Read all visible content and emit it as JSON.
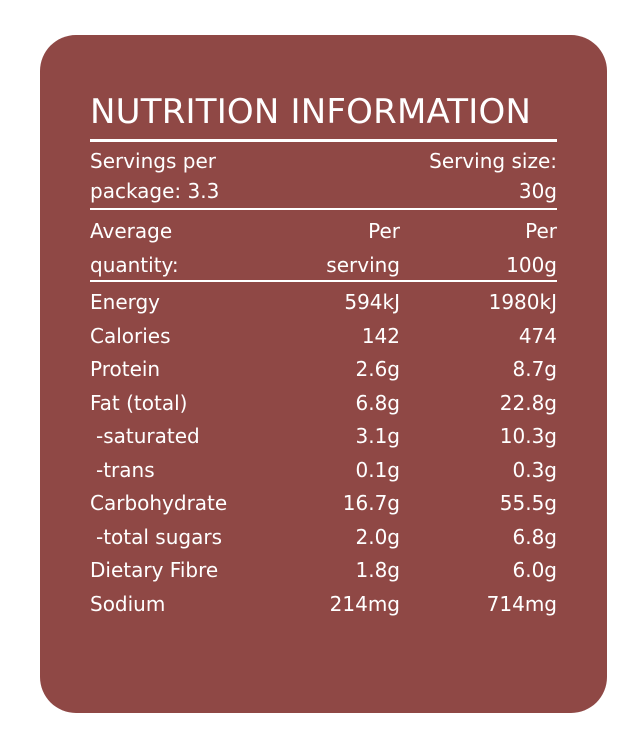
{
  "panel": {
    "background": "#8f4845",
    "text_color": "#ffffff"
  },
  "title": "NUTRITION INFORMATION",
  "servings": {
    "per_package_line1": "Servings per",
    "per_package_line2": "package: 3.3",
    "size_line1": "Serving size:",
    "size_line2": "30g"
  },
  "columns": {
    "name_line1": "Average",
    "name_line2": "quantity:",
    "serving_line1": "Per",
    "serving_line2": "serving",
    "per100_line1": "Per",
    "per100_line2": "100g"
  },
  "rows": [
    {
      "name": "Energy",
      "per_serving": "594kJ",
      "per_100g": "1980kJ"
    },
    {
      "name": "Calories",
      "per_serving": "142",
      "per_100g": "474"
    },
    {
      "name": "Protein",
      "per_serving": "2.6g",
      "per_100g": "8.7g"
    },
    {
      "name": "Fat (total)",
      "per_serving": "6.8g",
      "per_100g": "22.8g"
    },
    {
      "name": "-saturated",
      "per_serving": "3.1g",
      "per_100g": "10.3g"
    },
    {
      "name": "-trans",
      "per_serving": "0.1g",
      "per_100g": "0.3g"
    },
    {
      "name": "Carbohydrate",
      "per_serving": "16.7g",
      "per_100g": "55.5g"
    },
    {
      "name": "-total sugars",
      "per_serving": "2.0g",
      "per_100g": "6.8g"
    },
    {
      "name": "Dietary Fibre",
      "per_serving": "1.8g",
      "per_100g": "6.0g"
    },
    {
      "name": "Sodium",
      "per_serving": "214mg",
      "per_100g": "714mg"
    }
  ]
}
